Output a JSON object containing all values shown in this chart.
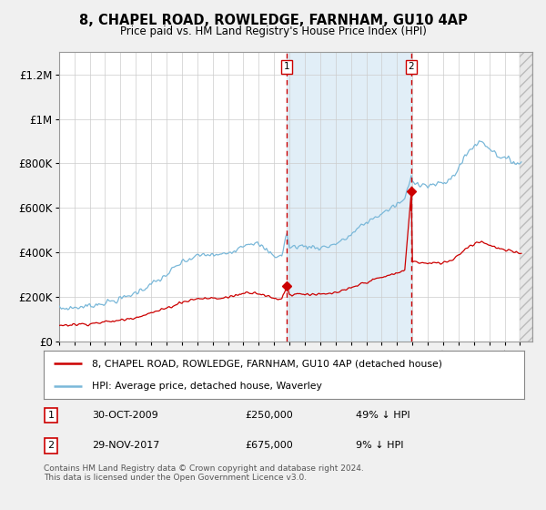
{
  "title": "8, CHAPEL ROAD, ROWLEDGE, FARNHAM, GU10 4AP",
  "subtitle": "Price paid vs. HM Land Registry's House Price Index (HPI)",
  "legend_line1": "8, CHAPEL ROAD, ROWLEDGE, FARNHAM, GU10 4AP (detached house)",
  "legend_line2": "HPI: Average price, detached house, Waverley",
  "transaction1_date": "30-OCT-2009",
  "transaction1_price": "£250,000",
  "transaction1_hpi": "49% ↓ HPI",
  "transaction2_date": "29-NOV-2017",
  "transaction2_price": "£675,000",
  "transaction2_hpi": "9% ↓ HPI",
  "footer": "Contains HM Land Registry data © Crown copyright and database right 2024.\nThis data is licensed under the Open Government Licence v3.0.",
  "sale_color": "#cc0000",
  "hpi_color": "#7ab8d9",
  "shade_color": "#daeaf5",
  "background_color": "#f0f0f0",
  "plot_background": "#ffffff",
  "vline_color": "#cc0000",
  "ylim": [
    0,
    1300000
  ],
  "yticks": [
    0,
    200000,
    400000,
    600000,
    800000,
    1000000,
    1200000
  ],
  "ytick_labels": [
    "£0",
    "£200K",
    "£400K",
    "£600K",
    "£800K",
    "£1M",
    "£1.2M"
  ],
  "transaction1_x": 2009.83,
  "transaction1_y": 250000,
  "transaction2_x": 2017.92,
  "transaction2_y": 675000,
  "xlim_left": 1995.0,
  "xlim_right": 2025.8
}
